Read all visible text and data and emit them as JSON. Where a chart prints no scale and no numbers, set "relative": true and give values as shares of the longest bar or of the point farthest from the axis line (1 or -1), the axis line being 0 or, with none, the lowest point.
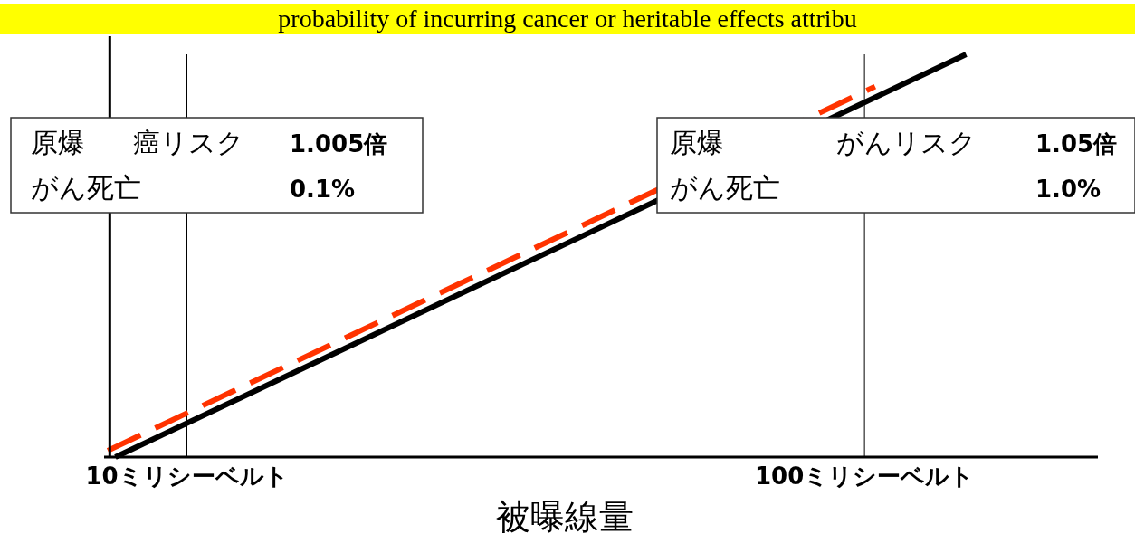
{
  "chart_data": {
    "type": "line",
    "relative": true,
    "title": "probability of incurring cancer or heritable effects attribu",
    "xlabel": "被曝線量",
    "xlim": [
      -1,
      131
    ],
    "xticks": [
      {
        "value": 10,
        "label": "10ミリシーベルト"
      },
      {
        "value": 100,
        "label": "100ミリシーベルト"
      }
    ],
    "series": [
      {
        "color": "#000000",
        "x": [
          0.5,
          113.5
        ],
        "values": [
          0,
          1
        ],
        "line_style": "solid"
      },
      {
        "color": "#ff3300",
        "x": [
          -0.5,
          101.4
        ],
        "values": [
          0.016,
          0.92
        ],
        "line_style": "dashed"
      }
    ],
    "ref_lines": [
      {
        "axis": "x",
        "value": 10,
        "color": "#000000"
      },
      {
        "axis": "x",
        "value": 100,
        "color": "#000000"
      }
    ],
    "annotations": [
      "原爆",
      "癌リスク",
      "1.005倍",
      "がん死亡",
      "0.1%",
      "原爆",
      "がんリスク",
      "1.05倍",
      "がん死亡",
      "1.0%"
    ],
    "tick_labels": "x"
  }
}
